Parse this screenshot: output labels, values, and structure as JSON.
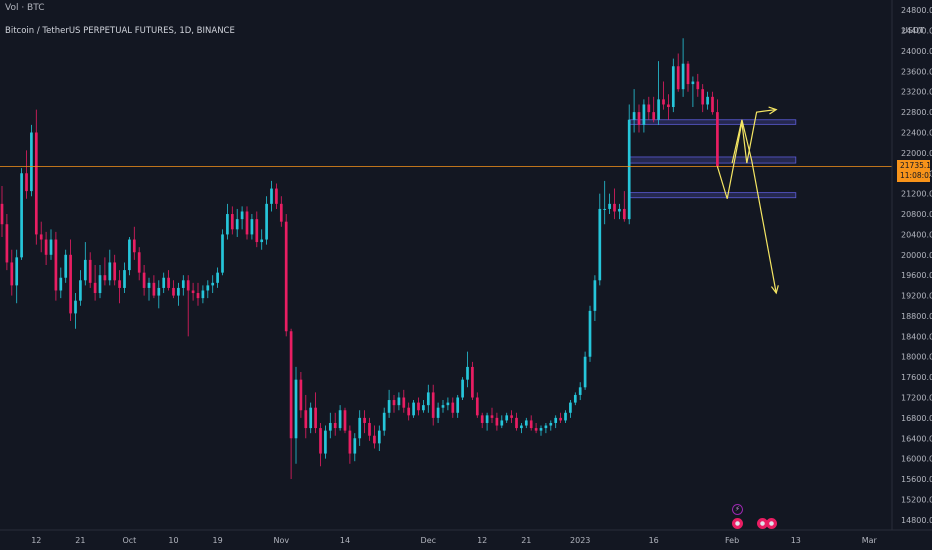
{
  "header": {
    "indicator_label": "Vol · BTC",
    "symbol_title": "Bitcoin / TetherUS PERPETUAL FUTURES, 1D, BINANCE",
    "currency_unit": "USDT"
  },
  "price_tag": {
    "price": "21735.1",
    "countdown": "11:08:02"
  },
  "colors": {
    "background": "#131722",
    "bull": "#26c6da",
    "bear": "#e91e63",
    "zone": "#5b5bd6",
    "projection": "#f5e663",
    "price_line": "#f7931a"
  },
  "chart_data": {
    "type": "candlestick",
    "symbol": "BTCUSDT.P",
    "interval": "1D",
    "ylim": [
      14600,
      25000
    ],
    "yticks": [
      14800,
      15200,
      15600,
      16000,
      16400,
      16800,
      17200,
      17600,
      18000,
      18400,
      18800,
      19200,
      19600,
      20000,
      20400,
      20800,
      21200,
      21600,
      22000,
      22400,
      22800,
      23200,
      23600,
      24000,
      24400,
      24800
    ],
    "ytick_labels": [
      "14800.0",
      "15200.0",
      "15600.0",
      "16000.0",
      "16400.0",
      "16800.0",
      "17200.0",
      "17600.0",
      "18000.0",
      "18400.0",
      "18800.0",
      "19200.0",
      "19600.0",
      "20000.0",
      "20400.0",
      "20800.0",
      "21200.0",
      "21600.0",
      "22000.0",
      "22400.0",
      "22800.0",
      "23200.0",
      "23600.0",
      "24000.0",
      "24400.0",
      "24800.0"
    ],
    "xlim": [
      0,
      180
    ],
    "xticks": [
      {
        "label": "12",
        "x": 7
      },
      {
        "label": "21",
        "x": 16
      },
      {
        "label": "Oct",
        "x": 26
      },
      {
        "label": "10",
        "x": 35
      },
      {
        "label": "19",
        "x": 44
      },
      {
        "label": "Nov",
        "x": 57
      },
      {
        "label": "14",
        "x": 70
      },
      {
        "label": "Dec",
        "x": 87
      },
      {
        "label": "12",
        "x": 98
      },
      {
        "label": "21",
        "x": 107
      },
      {
        "label": "2023",
        "x": 118
      },
      {
        "label": "16",
        "x": 133
      },
      {
        "label": "Feb",
        "x": 149
      },
      {
        "label": "13",
        "x": 162
      },
      {
        "label": "Mar",
        "x": 177
      }
    ],
    "candles": [
      [
        0,
        21000,
        21350,
        20350,
        20600
      ],
      [
        1,
        20600,
        20800,
        19700,
        19850
      ],
      [
        2,
        19850,
        20100,
        19200,
        19400
      ],
      [
        3,
        19400,
        20100,
        19050,
        19950
      ],
      [
        4,
        19950,
        21700,
        19900,
        21600
      ],
      [
        5,
        21600,
        22050,
        21100,
        21250
      ],
      [
        6,
        21250,
        22550,
        21150,
        22400
      ],
      [
        7,
        22400,
        22850,
        20200,
        20400
      ],
      [
        8,
        20400,
        20650,
        20050,
        20300
      ],
      [
        9,
        20300,
        20450,
        19800,
        20000
      ],
      [
        10,
        20000,
        20500,
        19900,
        20300
      ],
      [
        11,
        20300,
        20450,
        19100,
        19300
      ],
      [
        12,
        19300,
        19750,
        19150,
        19550
      ],
      [
        13,
        19550,
        20100,
        19450,
        20000
      ],
      [
        14,
        20000,
        20300,
        18700,
        18850
      ],
      [
        15,
        18850,
        19250,
        18550,
        19100
      ],
      [
        16,
        19100,
        19700,
        19000,
        19500
      ],
      [
        17,
        19500,
        20250,
        19400,
        19900
      ],
      [
        18,
        19900,
        20050,
        19350,
        19450
      ],
      [
        19,
        19450,
        19800,
        19100,
        19250
      ],
      [
        20,
        19250,
        19800,
        19150,
        19600
      ],
      [
        21,
        19600,
        19950,
        19400,
        19500
      ],
      [
        22,
        19500,
        20100,
        19400,
        19850
      ],
      [
        23,
        19850,
        20000,
        19400,
        19500
      ],
      [
        24,
        19500,
        19700,
        19050,
        19350
      ],
      [
        25,
        19350,
        19850,
        19250,
        19700
      ],
      [
        26,
        19700,
        20350,
        19600,
        20300
      ],
      [
        27,
        20300,
        20550,
        19900,
        20050
      ],
      [
        28,
        20050,
        20150,
        19500,
        19650
      ],
      [
        29,
        19650,
        19800,
        19200,
        19350
      ],
      [
        30,
        19350,
        19550,
        19100,
        19450
      ],
      [
        31,
        19450,
        19600,
        19150,
        19200
      ],
      [
        32,
        19200,
        19500,
        18950,
        19350
      ],
      [
        33,
        19350,
        19650,
        19250,
        19550
      ],
      [
        34,
        19550,
        19700,
        19300,
        19350
      ],
      [
        35,
        19350,
        19500,
        19150,
        19200
      ],
      [
        36,
        19200,
        19450,
        19000,
        19350
      ],
      [
        37,
        19350,
        19600,
        19200,
        19500
      ],
      [
        38,
        19500,
        19600,
        18400,
        19300
      ],
      [
        39,
        19300,
        19450,
        19100,
        19250
      ],
      [
        40,
        19250,
        19450,
        19000,
        19150
      ],
      [
        41,
        19150,
        19400,
        19050,
        19300
      ],
      [
        42,
        19300,
        19500,
        19150,
        19400
      ],
      [
        43,
        19400,
        19600,
        19250,
        19450
      ],
      [
        44,
        19450,
        19750,
        19350,
        19650
      ],
      [
        45,
        19650,
        20500,
        19600,
        20400
      ],
      [
        46,
        20400,
        21000,
        20300,
        20800
      ],
      [
        47,
        20800,
        20950,
        20400,
        20500
      ],
      [
        48,
        20500,
        20900,
        20350,
        20700
      ],
      [
        49,
        20700,
        20950,
        20500,
        20850
      ],
      [
        50,
        20850,
        20950,
        20300,
        20400
      ],
      [
        51,
        20400,
        20800,
        20300,
        20700
      ],
      [
        52,
        20700,
        20850,
        20150,
        20250
      ],
      [
        53,
        20250,
        20500,
        20100,
        20300
      ],
      [
        54,
        20300,
        21150,
        20200,
        21000
      ],
      [
        55,
        21000,
        21450,
        20850,
        21300
      ],
      [
        56,
        21300,
        21400,
        20900,
        21000
      ],
      [
        57,
        21000,
        21150,
        20550,
        20650
      ],
      [
        58,
        20650,
        20800,
        18400,
        18500
      ],
      [
        59,
        18500,
        18550,
        15600,
        16400
      ],
      [
        60,
        16400,
        17800,
        15900,
        17550
      ],
      [
        61,
        17550,
        17700,
        16800,
        16950
      ],
      [
        62,
        16950,
        17250,
        16400,
        16600
      ],
      [
        63,
        16600,
        17100,
        16500,
        17000
      ],
      [
        64,
        17000,
        17300,
        16500,
        16600
      ],
      [
        65,
        16600,
        16700,
        15850,
        16100
      ],
      [
        66,
        16100,
        16650,
        16000,
        16550
      ],
      [
        67,
        16550,
        16900,
        16400,
        16700
      ],
      [
        68,
        16700,
        16900,
        16450,
        16600
      ],
      [
        69,
        16600,
        17050,
        16550,
        16950
      ],
      [
        70,
        16950,
        17000,
        16500,
        16550
      ],
      [
        71,
        16550,
        16650,
        15900,
        16100
      ],
      [
        72,
        16100,
        16500,
        15950,
        16400
      ],
      [
        73,
        16400,
        16950,
        16250,
        16800
      ],
      [
        74,
        16800,
        16950,
        16500,
        16700
      ],
      [
        75,
        16700,
        16800,
        16350,
        16450
      ],
      [
        76,
        16450,
        16650,
        16200,
        16300
      ],
      [
        77,
        16300,
        16650,
        16150,
        16550
      ],
      [
        78,
        16550,
        17000,
        16450,
        16900
      ],
      [
        79,
        16900,
        17350,
        16800,
        17150
      ],
      [
        80,
        17150,
        17250,
        16900,
        17050
      ],
      [
        81,
        17050,
        17300,
        16950,
        17200
      ],
      [
        82,
        17200,
        17350,
        16900,
        17000
      ],
      [
        83,
        17000,
        17100,
        16750,
        16850
      ],
      [
        84,
        16850,
        17150,
        16800,
        17100
      ],
      [
        85,
        17100,
        17200,
        16850,
        16950
      ],
      [
        86,
        16950,
        17150,
        16900,
        17050
      ],
      [
        87,
        17050,
        17450,
        16900,
        17300
      ],
      [
        88,
        17300,
        17450,
        16650,
        16800
      ],
      [
        89,
        16800,
        17100,
        16700,
        17000
      ],
      [
        90,
        17000,
        17150,
        16900,
        17050
      ],
      [
        91,
        17050,
        17200,
        16950,
        17100
      ],
      [
        92,
        17100,
        17200,
        16800,
        16900
      ],
      [
        93,
        16900,
        17250,
        16800,
        17200
      ],
      [
        94,
        17200,
        17600,
        17150,
        17550
      ],
      [
        95,
        17550,
        18100,
        17400,
        17800
      ],
      [
        96,
        17800,
        17900,
        17150,
        17200
      ],
      [
        97,
        17200,
        17300,
        16800,
        16850
      ],
      [
        98,
        16850,
        16900,
        16600,
        16700
      ],
      [
        99,
        16700,
        16900,
        16550,
        16850
      ],
      [
        100,
        16850,
        17000,
        16700,
        16800
      ],
      [
        101,
        16800,
        16900,
        16550,
        16650
      ],
      [
        102,
        16650,
        16850,
        16600,
        16750
      ],
      [
        103,
        16750,
        16900,
        16700,
        16850
      ],
      [
        104,
        16850,
        16950,
        16700,
        16800
      ],
      [
        105,
        16800,
        16900,
        16550,
        16600
      ],
      [
        106,
        16600,
        16700,
        16500,
        16650
      ],
      [
        107,
        16650,
        16800,
        16600,
        16750
      ],
      [
        108,
        16750,
        16850,
        16550,
        16600
      ],
      [
        109,
        16600,
        16700,
        16500,
        16550
      ],
      [
        110,
        16550,
        16650,
        16450,
        16600
      ],
      [
        111,
        16600,
        16700,
        16500,
        16650
      ],
      [
        112,
        16650,
        16750,
        16550,
        16700
      ],
      [
        113,
        16700,
        16850,
        16600,
        16800
      ],
      [
        114,
        16800,
        16900,
        16700,
        16750
      ],
      [
        115,
        16750,
        16950,
        16700,
        16900
      ],
      [
        116,
        16900,
        17150,
        16800,
        17100
      ],
      [
        117,
        17100,
        17300,
        17050,
        17250
      ],
      [
        118,
        17250,
        17500,
        17150,
        17400
      ],
      [
        119,
        17400,
        18100,
        17350,
        18000
      ],
      [
        120,
        18000,
        19000,
        17900,
        18900
      ],
      [
        121,
        18900,
        19600,
        18700,
        19500
      ],
      [
        122,
        19500,
        21200,
        19400,
        20900
      ],
      [
        123,
        20900,
        21450,
        20600,
        20900
      ],
      [
        124,
        20900,
        21200,
        20800,
        21000
      ],
      [
        125,
        21000,
        21300,
        20700,
        20850
      ],
      [
        126,
        20850,
        21000,
        20700,
        20900
      ],
      [
        127,
        20900,
        21250,
        20650,
        20700
      ],
      [
        128,
        20700,
        22950,
        20600,
        22650
      ],
      [
        129,
        22650,
        23250,
        22400,
        22800
      ],
      [
        130,
        22800,
        22950,
        22400,
        22550
      ],
      [
        131,
        22550,
        23050,
        22400,
        22950
      ],
      [
        132,
        22950,
        23100,
        22650,
        22800
      ],
      [
        133,
        22800,
        23100,
        22600,
        22650
      ],
      [
        134,
        22650,
        23800,
        22550,
        23050
      ],
      [
        135,
        23050,
        23400,
        22850,
        22950
      ],
      [
        136,
        22950,
        23150,
        22650,
        22900
      ],
      [
        137,
        22900,
        23850,
        22800,
        23700
      ],
      [
        138,
        23700,
        23950,
        23200,
        23250
      ],
      [
        139,
        23250,
        24250,
        23100,
        23750
      ],
      [
        140,
        23750,
        23800,
        23200,
        23350
      ],
      [
        141,
        23350,
        23500,
        22900,
        23400
      ],
      [
        142,
        23400,
        23550,
        23100,
        23250
      ],
      [
        143,
        23250,
        23350,
        22800,
        22950
      ],
      [
        144,
        22950,
        23200,
        22850,
        23100
      ],
      [
        145,
        23100,
        23200,
        22750,
        22800
      ],
      [
        146,
        22800,
        23050,
        21700,
        21735
      ]
    ],
    "zones": [
      {
        "y_low": 22560,
        "y_high": 22650,
        "x_start": 128,
        "x_end": 162
      },
      {
        "y_low": 21800,
        "y_high": 21920,
        "x_start": 128,
        "x_end": 162
      },
      {
        "y_low": 21120,
        "y_high": 21220,
        "x_start": 128,
        "x_end": 162
      }
    ],
    "projections": [
      {
        "x": [
          146,
          148,
          151,
          152,
          154,
          158
        ],
        "y": [
          21735,
          21100,
          22600,
          21800,
          22800,
          22850
        ]
      },
      {
        "x": [
          149,
          151,
          153,
          158
        ],
        "y": [
          21800,
          22650,
          21850,
          19250
        ]
      }
    ],
    "last_price": 21735.1,
    "events": [
      {
        "icon": "lightning",
        "x": 150
      },
      {
        "icon": "flag",
        "x": 150
      },
      {
        "icon": "flag",
        "x": 155
      },
      {
        "icon": "flag",
        "x": 157
      }
    ]
  }
}
